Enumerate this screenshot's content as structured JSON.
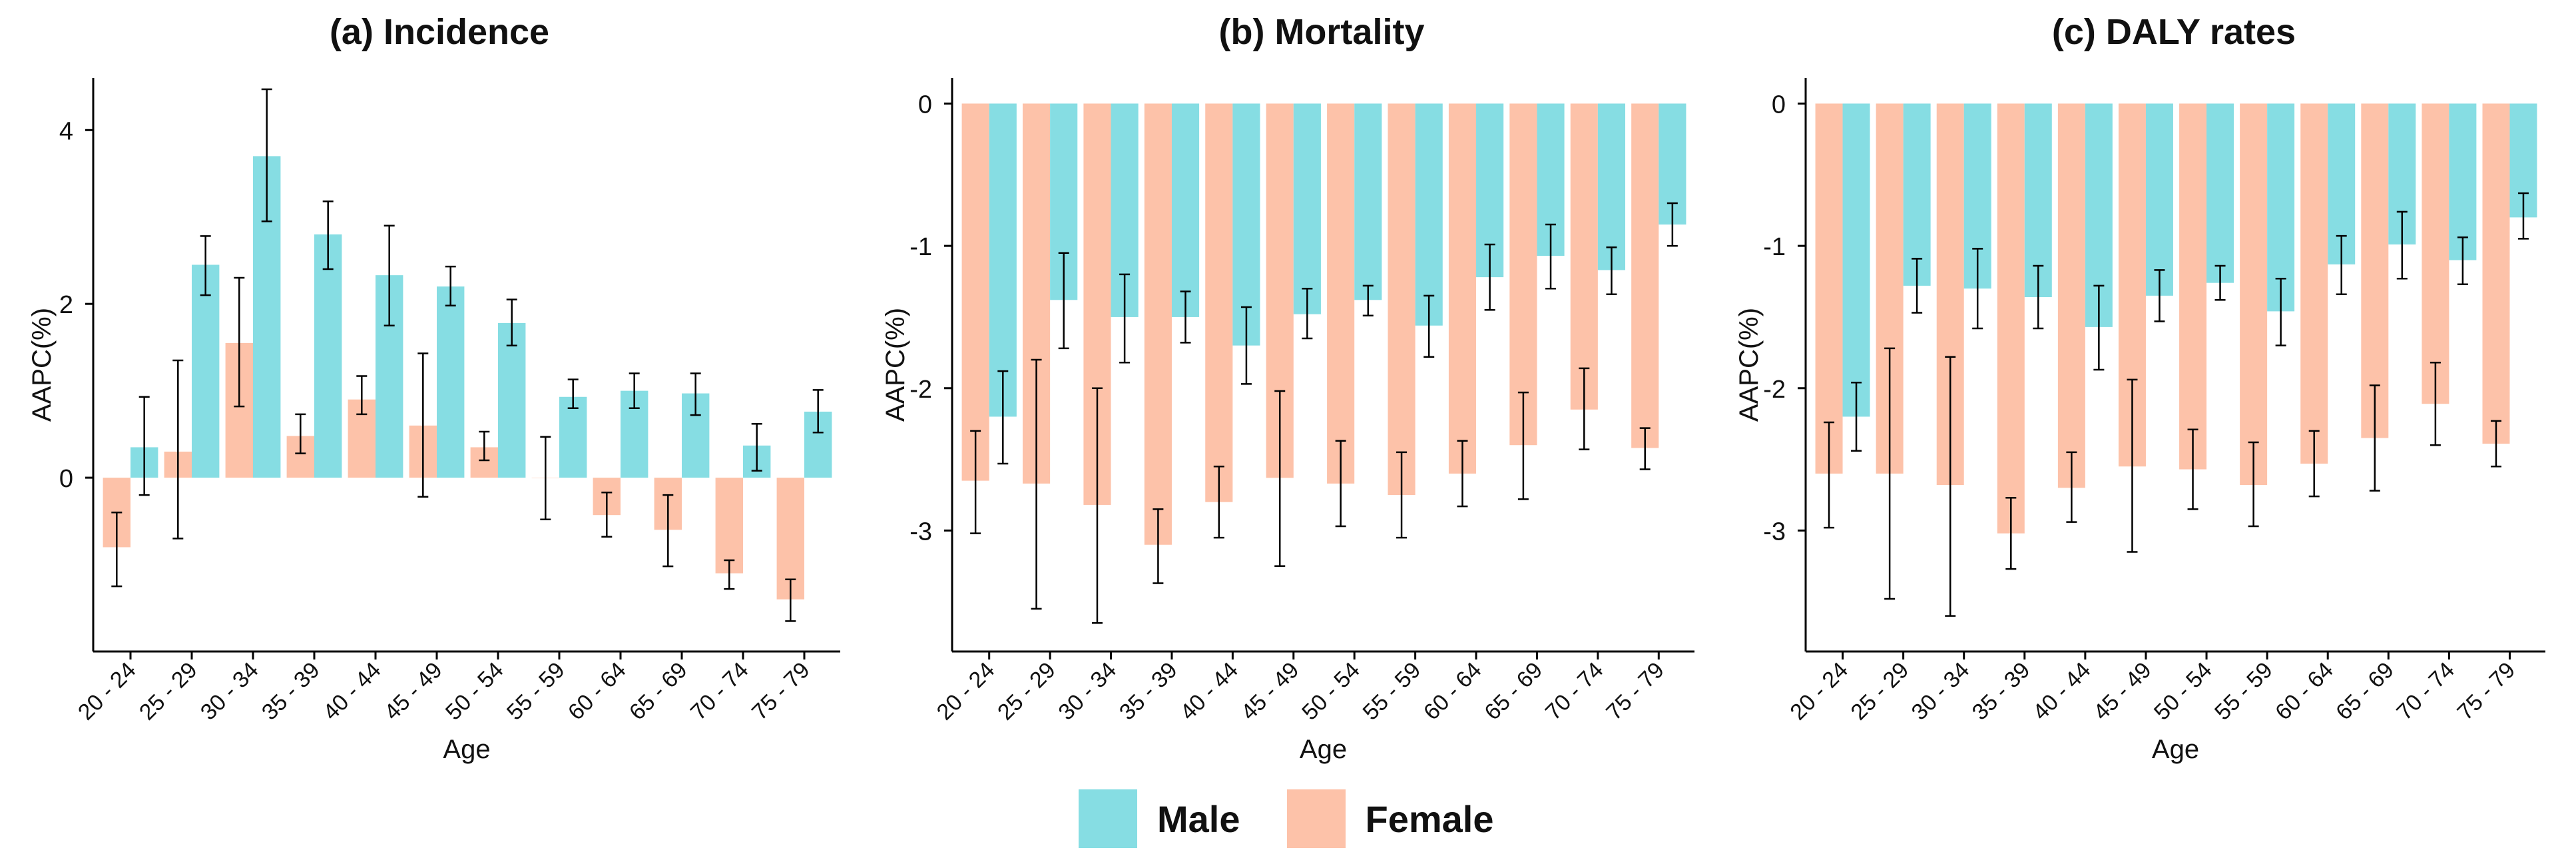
{
  "colors": {
    "male": "#86dde3",
    "female": "#fdc2a9",
    "axis": "#000000",
    "text": "#111111"
  },
  "legend": {
    "male_label": "Male",
    "female_label": "Female"
  },
  "chart_data": [
    {
      "type": "bar",
      "title": "(a) Incidence",
      "xlabel": "Age",
      "ylabel": "AAPC(%)",
      "ylim": [
        -2,
        4.6
      ],
      "yticks": [
        0,
        2,
        4
      ],
      "yticklabels": [
        "0",
        "2",
        "4"
      ],
      "categories": [
        "20 - 24",
        "25 - 29",
        "30 - 34",
        "35 - 39",
        "40 - 44",
        "45 - 49",
        "50 - 54",
        "55 - 59",
        "60 - 64",
        "65 - 69",
        "70 - 74",
        "75 - 79"
      ],
      "series": [
        {
          "name": "Female",
          "values": [
            -0.8,
            0.3,
            1.55,
            0.48,
            0.9,
            0.6,
            0.35,
            0.0,
            -0.43,
            -0.6,
            -1.1,
            -1.4
          ],
          "err_low": [
            -1.25,
            -0.7,
            0.82,
            0.28,
            0.73,
            -0.22,
            0.2,
            -0.48,
            -0.68,
            -1.02,
            -1.28,
            -1.65
          ],
          "err_high": [
            -0.4,
            1.35,
            2.3,
            0.73,
            1.17,
            1.43,
            0.53,
            0.47,
            -0.17,
            -0.2,
            -0.95,
            -1.17
          ]
        },
        {
          "name": "Male",
          "values": [
            0.35,
            2.45,
            3.7,
            2.8,
            2.33,
            2.2,
            1.78,
            0.93,
            1.0,
            0.97,
            0.37,
            0.76
          ],
          "err_low": [
            -0.2,
            2.1,
            2.95,
            2.4,
            1.75,
            1.98,
            1.52,
            0.8,
            0.8,
            0.72,
            0.08,
            0.52
          ],
          "err_high": [
            0.93,
            2.78,
            4.47,
            3.18,
            2.9,
            2.43,
            2.05,
            1.13,
            1.2,
            1.2,
            0.62,
            1.01
          ]
        }
      ]
    },
    {
      "type": "bar",
      "title": "(b) Mortality",
      "xlabel": "Age",
      "ylabel": "AAPC(%)",
      "ylim": [
        -3.85,
        0.18
      ],
      "yticks": [
        0,
        -1,
        -2,
        -3
      ],
      "yticklabels": [
        "0",
        "-1",
        "-2",
        "-3"
      ],
      "categories": [
        "20 - 24",
        "25 - 29",
        "30 - 34",
        "35 - 39",
        "40 - 44",
        "45 - 49",
        "50 - 54",
        "55 - 59",
        "60 - 64",
        "65 - 69",
        "70 - 74",
        "75 - 79"
      ],
      "series": [
        {
          "name": "Female",
          "values": [
            -2.65,
            -2.67,
            -2.82,
            -3.1,
            -2.8,
            -2.63,
            -2.67,
            -2.75,
            -2.6,
            -2.4,
            -2.15,
            -2.42
          ],
          "err_low": [
            -3.02,
            -3.55,
            -3.65,
            -3.37,
            -3.05,
            -3.25,
            -2.97,
            -3.05,
            -2.83,
            -2.78,
            -2.43,
            -2.57
          ],
          "err_high": [
            -2.3,
            -1.8,
            -2.0,
            -2.85,
            -2.55,
            -2.02,
            -2.37,
            -2.45,
            -2.37,
            -2.03,
            -1.86,
            -2.28
          ]
        },
        {
          "name": "Male",
          "values": [
            -2.2,
            -1.38,
            -1.5,
            -1.5,
            -1.7,
            -1.48,
            -1.38,
            -1.56,
            -1.22,
            -1.07,
            -1.17,
            -0.85
          ],
          "err_low": [
            -2.53,
            -1.72,
            -1.82,
            -1.68,
            -1.97,
            -1.65,
            -1.49,
            -1.78,
            -1.45,
            -1.3,
            -1.34,
            -1.0
          ],
          "err_high": [
            -1.88,
            -1.05,
            -1.2,
            -1.32,
            -1.43,
            -1.3,
            -1.28,
            -1.35,
            -0.99,
            -0.85,
            -1.01,
            -0.7
          ]
        }
      ]
    },
    {
      "type": "bar",
      "title": "(c) DALY rates",
      "xlabel": "Age",
      "ylabel": "AAPC(%)",
      "ylim": [
        -3.85,
        0.18
      ],
      "yticks": [
        0,
        -1,
        -2,
        -3
      ],
      "yticklabels": [
        "0",
        "-1",
        "-2",
        "-3"
      ],
      "categories": [
        "20 - 24",
        "25 - 29",
        "30 - 34",
        "35 - 39",
        "40 - 44",
        "45 - 49",
        "50 - 54",
        "55 - 59",
        "60 - 64",
        "65 - 69",
        "70 - 74",
        "75 - 79"
      ],
      "series": [
        {
          "name": "Female",
          "values": [
            -2.6,
            -2.6,
            -2.68,
            -3.02,
            -2.7,
            -2.55,
            -2.57,
            -2.68,
            -2.53,
            -2.35,
            -2.11,
            -2.39
          ],
          "err_low": [
            -2.98,
            -3.48,
            -3.6,
            -3.27,
            -2.94,
            -3.15,
            -2.85,
            -2.97,
            -2.76,
            -2.72,
            -2.4,
            -2.55
          ],
          "err_high": [
            -2.24,
            -1.72,
            -1.78,
            -2.77,
            -2.45,
            -1.94,
            -2.29,
            -2.38,
            -2.3,
            -1.98,
            -1.82,
            -2.23
          ]
        },
        {
          "name": "Male",
          "values": [
            -2.2,
            -1.28,
            -1.3,
            -1.36,
            -1.57,
            -1.35,
            -1.26,
            -1.46,
            -1.13,
            -0.99,
            -1.1,
            -0.8
          ],
          "err_low": [
            -2.44,
            -1.47,
            -1.58,
            -1.58,
            -1.87,
            -1.53,
            -1.38,
            -1.7,
            -1.34,
            -1.23,
            -1.27,
            -0.95
          ],
          "err_high": [
            -1.96,
            -1.09,
            -1.02,
            -1.14,
            -1.28,
            -1.17,
            -1.14,
            -1.23,
            -0.93,
            -0.76,
            -0.94,
            -0.63
          ]
        }
      ]
    }
  ]
}
